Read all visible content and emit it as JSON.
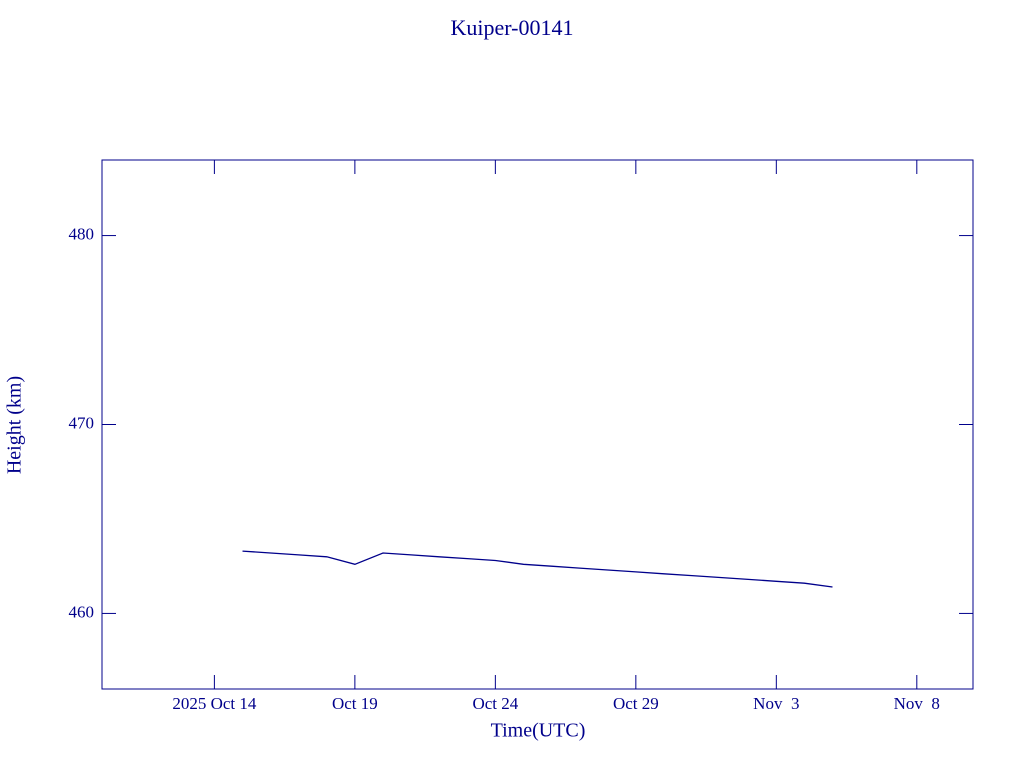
{
  "chart_data": {
    "type": "line",
    "title": "Kuiper-00141",
    "x_label": "Time(UTC)",
    "y_label": "Height (km)",
    "color": "#00008b",
    "x": [
      "2025-10-15",
      "2025-10-16",
      "2025-10-17",
      "2025-10-18",
      "2025-10-19",
      "2025-10-20",
      "2025-10-21",
      "2025-10-22",
      "2025-10-23",
      "2025-10-24",
      "2025-10-25",
      "2025-10-26",
      "2025-10-27",
      "2025-10-28",
      "2025-10-29",
      "2025-10-30",
      "2025-10-31",
      "2025-11-01",
      "2025-11-02",
      "2025-11-03",
      "2025-11-04",
      "2025-11-05"
    ],
    "values": [
      463.3,
      463.2,
      463.1,
      463.0,
      462.6,
      463.2,
      463.1,
      463.0,
      462.9,
      462.8,
      462.6,
      462.5,
      462.4,
      462.3,
      462.2,
      462.1,
      462.0,
      461.9,
      461.8,
      461.7,
      461.6,
      461.4
    ],
    "xlim": [
      "2025-10-10",
      "2025-11-10"
    ],
    "xticks": [
      {
        "value": "2025-10-14",
        "label": "2025 Oct 14"
      },
      {
        "value": "2025-10-19",
        "label": "Oct 19"
      },
      {
        "value": "2025-10-24",
        "label": "Oct 24"
      },
      {
        "value": "2025-10-29",
        "label": "Oct 29"
      },
      {
        "value": "2025-11-03",
        "label": "Nov  3"
      },
      {
        "value": "2025-11-08",
        "label": "Nov  8"
      }
    ],
    "ylim": [
      456,
      484
    ],
    "yticks": [
      460,
      470,
      480
    ]
  }
}
